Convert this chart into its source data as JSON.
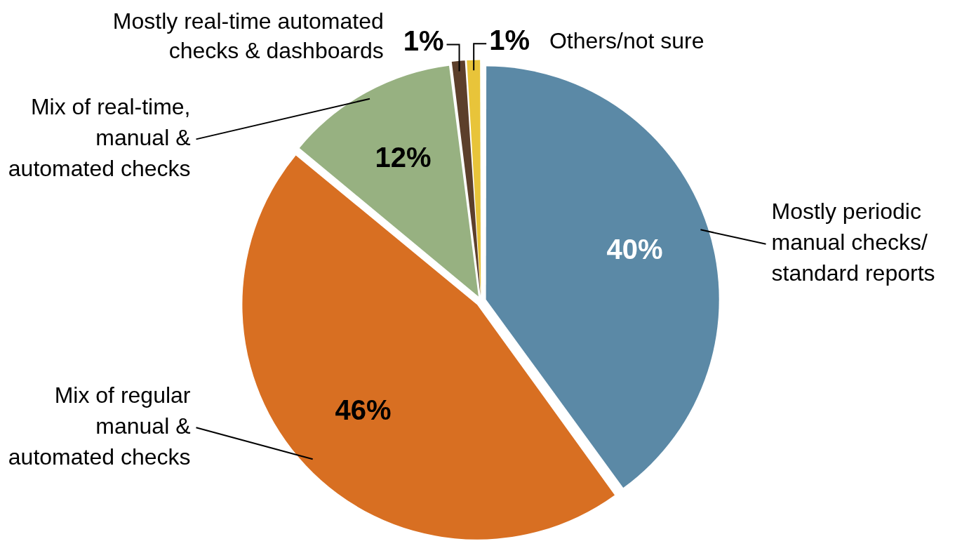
{
  "chart_data": {
    "type": "pie",
    "categories": [
      "Mostly periodic manual checks/ standard reports",
      "Mix of regular manual & automated checks",
      "Mix of real-time, manual & automated checks",
      "Mostly real-time automated checks & dashboards",
      "Others/not sure"
    ],
    "values": [
      40,
      46,
      12,
      1,
      1
    ],
    "colors": [
      "#5b89a6",
      "#d86f22",
      "#97b181",
      "#5c3f2b",
      "#e8c43a"
    ],
    "value_labels": [
      "40%",
      "46%",
      "12%",
      "1%",
      "1%"
    ]
  }
}
